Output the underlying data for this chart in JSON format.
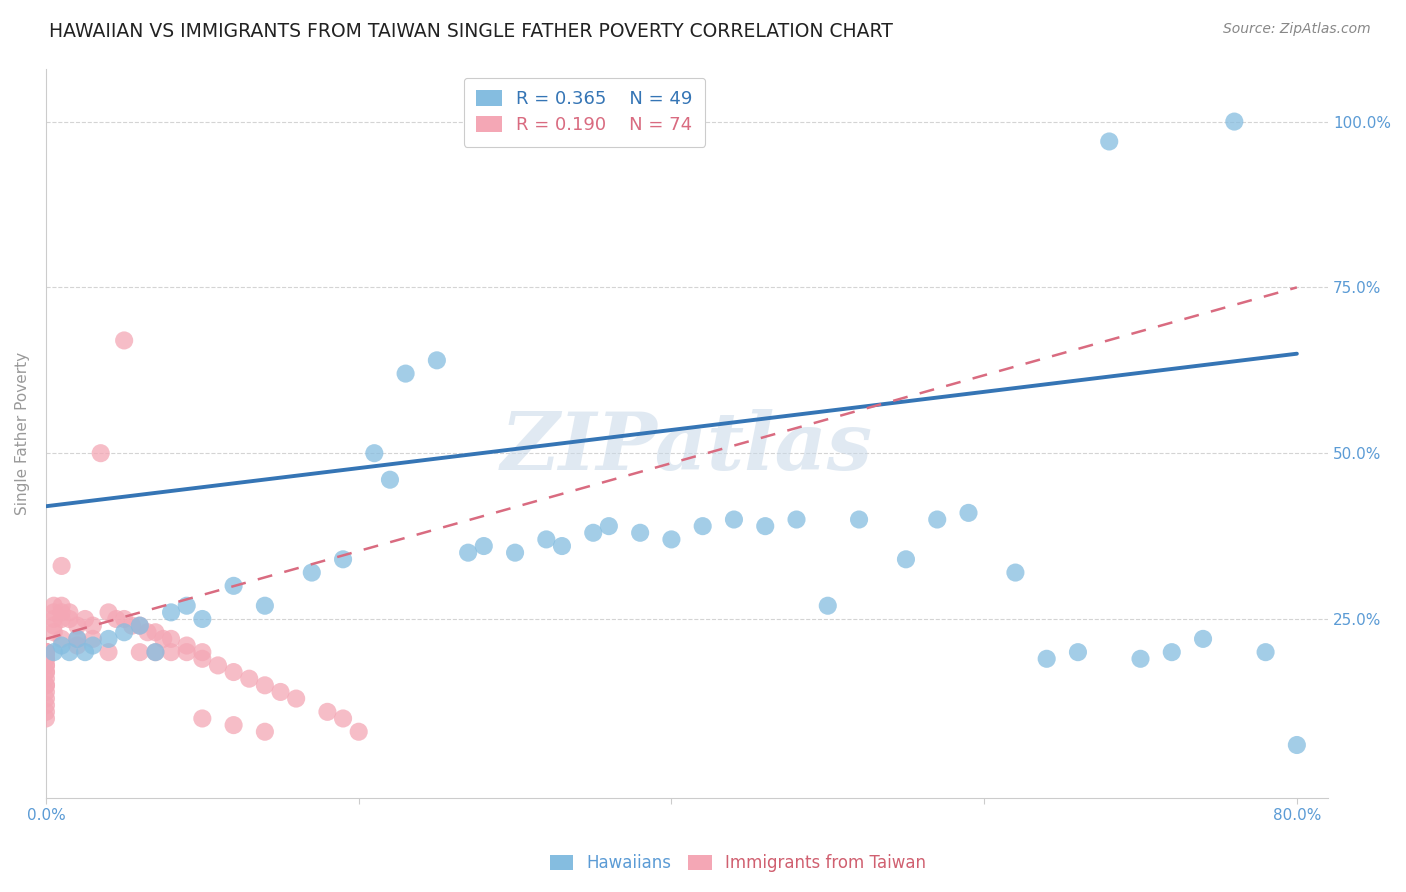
{
  "title": "HAWAIIAN VS IMMIGRANTS FROM TAIWAN SINGLE FATHER POVERTY CORRELATION CHART",
  "source": "Source: ZipAtlas.com",
  "ylabel": "Single Father Poverty",
  "watermark": "ZIPatlas",
  "xlim": [
    0.0,
    0.82
  ],
  "ylim": [
    -0.02,
    1.08
  ],
  "ytick_positions": [
    0.25,
    0.5,
    0.75,
    1.0
  ],
  "ytick_labels": [
    "25.0%",
    "50.0%",
    "75.0%",
    "100.0%"
  ],
  "xtick_positions": [
    0.0,
    0.2,
    0.4,
    0.6,
    0.8
  ],
  "xtick_labels": [
    "0.0%",
    "",
    "",
    "",
    "80.0%"
  ],
  "blue_R": 0.365,
  "blue_N": 49,
  "pink_R": 0.19,
  "pink_N": 74,
  "blue_color": "#85bde0",
  "pink_color": "#f4a7b5",
  "blue_line_color": "#3575b5",
  "pink_line_color": "#d96b80",
  "axis_label_color": "#5b9bd5",
  "legend_label_blue": "Hawaiians",
  "legend_label_pink": "Immigrants from Taiwan",
  "blue_x": [
    0.005,
    0.01,
    0.015,
    0.02,
    0.025,
    0.03,
    0.04,
    0.05,
    0.06,
    0.07,
    0.08,
    0.09,
    0.1,
    0.12,
    0.14,
    0.17,
    0.19,
    0.21,
    0.22,
    0.23,
    0.25,
    0.27,
    0.28,
    0.3,
    0.32,
    0.33,
    0.35,
    0.36,
    0.38,
    0.4,
    0.42,
    0.44,
    0.46,
    0.48,
    0.5,
    0.52,
    0.55,
    0.57,
    0.59,
    0.62,
    0.64,
    0.66,
    0.68,
    0.7,
    0.72,
    0.74,
    0.76,
    0.78,
    0.8
  ],
  "blue_y": [
    0.2,
    0.21,
    0.2,
    0.22,
    0.2,
    0.21,
    0.22,
    0.23,
    0.24,
    0.2,
    0.26,
    0.27,
    0.25,
    0.3,
    0.27,
    0.32,
    0.34,
    0.5,
    0.46,
    0.62,
    0.64,
    0.35,
    0.36,
    0.35,
    0.37,
    0.36,
    0.38,
    0.39,
    0.38,
    0.37,
    0.39,
    0.4,
    0.39,
    0.4,
    0.27,
    0.4,
    0.34,
    0.4,
    0.41,
    0.32,
    0.19,
    0.2,
    0.97,
    0.19,
    0.2,
    0.22,
    1.0,
    0.2,
    0.06
  ],
  "pink_x": [
    0.0,
    0.0,
    0.0,
    0.0,
    0.0,
    0.0,
    0.0,
    0.0,
    0.0,
    0.0,
    0.0,
    0.0,
    0.0,
    0.0,
    0.0,
    0.0,
    0.0,
    0.0,
    0.0,
    0.0,
    0.0,
    0.0,
    0.0,
    0.0,
    0.0,
    0.005,
    0.005,
    0.005,
    0.005,
    0.005,
    0.01,
    0.01,
    0.01,
    0.015,
    0.015,
    0.02,
    0.025,
    0.03,
    0.035,
    0.04,
    0.045,
    0.05,
    0.055,
    0.06,
    0.065,
    0.07,
    0.075,
    0.08,
    0.09,
    0.1,
    0.1,
    0.11,
    0.12,
    0.13,
    0.14,
    0.15,
    0.16,
    0.18,
    0.19,
    0.2,
    0.01,
    0.01,
    0.02,
    0.02,
    0.03,
    0.04,
    0.05,
    0.06,
    0.07,
    0.08,
    0.09,
    0.1,
    0.12,
    0.14
  ],
  "pink_y": [
    0.2,
    0.2,
    0.2,
    0.2,
    0.2,
    0.2,
    0.2,
    0.2,
    0.2,
    0.2,
    0.19,
    0.19,
    0.19,
    0.18,
    0.18,
    0.17,
    0.17,
    0.16,
    0.15,
    0.15,
    0.14,
    0.13,
    0.12,
    0.11,
    0.1,
    0.27,
    0.26,
    0.25,
    0.24,
    0.23,
    0.27,
    0.26,
    0.25,
    0.26,
    0.25,
    0.24,
    0.25,
    0.24,
    0.5,
    0.26,
    0.25,
    0.25,
    0.24,
    0.24,
    0.23,
    0.23,
    0.22,
    0.22,
    0.21,
    0.2,
    0.19,
    0.18,
    0.17,
    0.16,
    0.15,
    0.14,
    0.13,
    0.11,
    0.1,
    0.08,
    0.33,
    0.22,
    0.22,
    0.21,
    0.22,
    0.2,
    0.67,
    0.2,
    0.2,
    0.2,
    0.2,
    0.1,
    0.09,
    0.08
  ],
  "blue_trendline_x": [
    0.0,
    0.8
  ],
  "blue_trendline_y": [
    0.42,
    0.65
  ],
  "pink_trendline_x": [
    0.0,
    0.8
  ],
  "pink_trendline_y": [
    0.22,
    0.75
  ],
  "background_color": "#ffffff",
  "grid_color": "#d0d0d0",
  "title_fontsize": 13.5,
  "label_fontsize": 11,
  "tick_fontsize": 11
}
